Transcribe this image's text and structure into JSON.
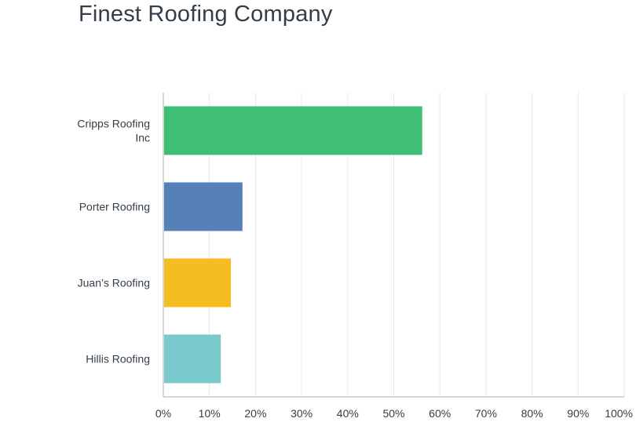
{
  "chart_data": {
    "type": "bar",
    "orientation": "horizontal",
    "title": "Finest Roofing Company",
    "categories": [
      "Cripps Roofing Inc",
      "Porter Roofing",
      "Juan’s Roofing",
      "Hillis Roofing"
    ],
    "values": [
      56,
      17,
      14.5,
      12.3
    ],
    "colors": [
      "#3fbf75",
      "#5580b8",
      "#f5bd20",
      "#78c8cc"
    ],
    "xlabel": "",
    "ylabel": "",
    "xlim": [
      0,
      100
    ],
    "x_ticks": [
      "0%",
      "10%",
      "20%",
      "30%",
      "40%",
      "50%",
      "60%",
      "70%",
      "80%",
      "90%",
      "100%"
    ],
    "value_unit": "%",
    "grid": true,
    "legend": "none"
  }
}
